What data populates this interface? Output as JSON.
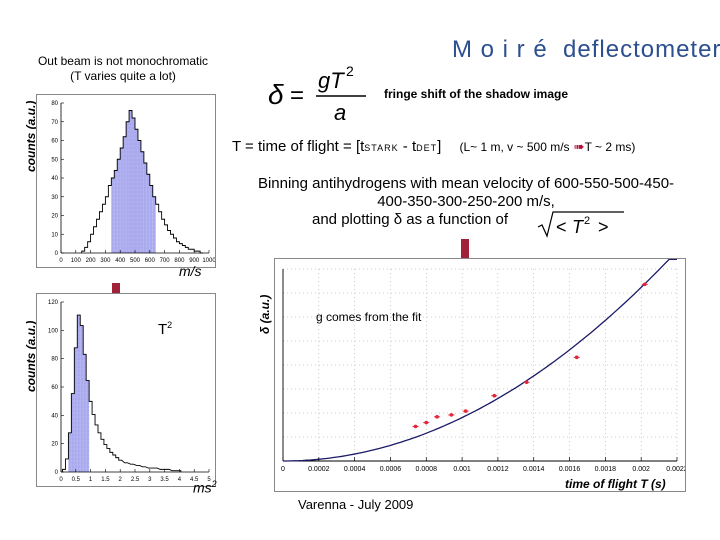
{
  "slide": {
    "title": "M o i r é  deflectometer",
    "note_out_beam_1": "Out beam is not monochromatic",
    "note_out_beam_2": "(T varies quite a lot)",
    "fringe_label": "fringe shift of the shadow image",
    "tof_main": "T = time of flight = [t",
    "tof_sub1": "STARK",
    "tof_mid": " - t",
    "tof_sub2": "DET",
    "tof_end": "]",
    "tof_params": "(L~ 1 m, v ~ 500 m/s",
    "tof_result": "T ~ 2 ms)",
    "binning_line1": "Binning antihydrogens with mean velocity of 600-550-500-450-",
    "binning_line2": "400-350-300-250-200 m/s,",
    "binning_line3": "and plotting δ as a function of",
    "footer": "Varenna - July 2009"
  },
  "hist_velocity": {
    "ylabel": "counts (a.u.)",
    "variable": "v",
    "unit": "m/s",
    "x_ticks": [
      "0",
      "100",
      "200",
      "300",
      "400",
      "500",
      "600",
      "700",
      "800",
      "900",
      "1000"
    ],
    "y_ticks": [
      "0",
      "10",
      "20",
      "30",
      "40",
      "50",
      "60",
      "70",
      "80"
    ]
  },
  "hist_t2": {
    "ylabel": "counts (a.u.)",
    "variable": "T",
    "variable_sup": "2",
    "unit": "ms",
    "unit_sup": "2",
    "x_ticks": [
      "0",
      "0.5",
      "1",
      "1.5",
      "2",
      "2.5",
      "3",
      "3.5",
      "4",
      "4.5",
      "5"
    ],
    "y_ticks": [
      "0",
      "20",
      "40",
      "60",
      "80",
      "100",
      "120"
    ]
  },
  "fit_plot": {
    "ylabel": "δ (a.u.)",
    "xlabel": "time of flight T (s)",
    "annotation": "g comes from the fit",
    "x_ticks": [
      "0",
      "0.0002",
      "0.0004",
      "0.0006",
      "0.0008",
      "0.001",
      "0.0012",
      "0.0014",
      "0.0016",
      "0.0018",
      "0.002",
      "0.0022"
    ]
  },
  "chart_data": [
    {
      "type": "bar",
      "title": "",
      "xlabel": "m/s",
      "ylabel": "counts (a.u.)",
      "xlim": [
        0,
        1000
      ],
      "ylim": [
        0,
        80
      ],
      "x_bin_centers": [
        150,
        170,
        190,
        210,
        230,
        250,
        270,
        290,
        310,
        330,
        350,
        370,
        390,
        410,
        430,
        450,
        470,
        490,
        510,
        530,
        550,
        570,
        590,
        610,
        630,
        650,
        670,
        690,
        710,
        730,
        750,
        770,
        790,
        810,
        830,
        850,
        870,
        890,
        910,
        930,
        950
      ],
      "values": [
        1,
        3,
        6,
        10,
        14,
        18,
        22,
        26,
        30,
        36,
        40,
        44,
        50,
        56,
        62,
        70,
        76,
        72,
        66,
        60,
        54,
        48,
        42,
        36,
        30,
        26,
        22,
        18,
        15,
        12,
        10,
        8,
        6,
        5,
        4,
        3,
        2,
        2,
        1,
        1,
        0
      ],
      "highlight_range": [
        350,
        640
      ]
    },
    {
      "type": "bar",
      "title": "",
      "xlabel": "ms2",
      "ylabel": "counts (a.u.)",
      "xlim": [
        0,
        5
      ],
      "ylim": [
        0,
        130
      ],
      "x_bin_centers": [
        0.1,
        0.2,
        0.3,
        0.4,
        0.5,
        0.6,
        0.7,
        0.8,
        0.9,
        1.0,
        1.1,
        1.2,
        1.3,
        1.4,
        1.5,
        1.6,
        1.7,
        1.8,
        1.9,
        2.0,
        2.2,
        2.4,
        2.6,
        2.8,
        3.0,
        3.2,
        3.4,
        3.6,
        3.8,
        4.0
      ],
      "values": [
        2,
        10,
        30,
        60,
        95,
        120,
        112,
        90,
        70,
        54,
        44,
        36,
        30,
        25,
        21,
        18,
        15,
        13,
        11,
        9,
        7,
        6,
        5,
        4,
        3,
        3,
        2,
        2,
        1,
        1
      ],
      "highlight_range": [
        0.3,
        0.95
      ]
    },
    {
      "type": "scatter",
      "title": "",
      "xlabel": "time of flight T (s)",
      "ylabel": "δ (a.u.)",
      "xlim": [
        0,
        0.0022
      ],
      "ylim": [
        0,
        1
      ],
      "series": [
        {
          "values_x": [
            0.00074,
            0.0008,
            0.00086,
            0.00094,
            0.00102,
            0.00118,
            0.00136,
            0.00164,
            0.00202
          ],
          "values_y": [
            0.18,
            0.2,
            0.23,
            0.24,
            0.26,
            0.34,
            0.41,
            0.54,
            0.92
          ]
        }
      ],
      "fit_curve": "quadratic"
    }
  ],
  "colors": {
    "title": "#2c4f8f",
    "hist_fill": "#a9a9ee",
    "hist_line": "#000000",
    "fit_curve": "#1a1a66",
    "fit_points": "#e3263a",
    "arrows": "#a1213a"
  },
  "icons": [
    "red-down-arrow-icon",
    "red-right-arrow-icon"
  ]
}
